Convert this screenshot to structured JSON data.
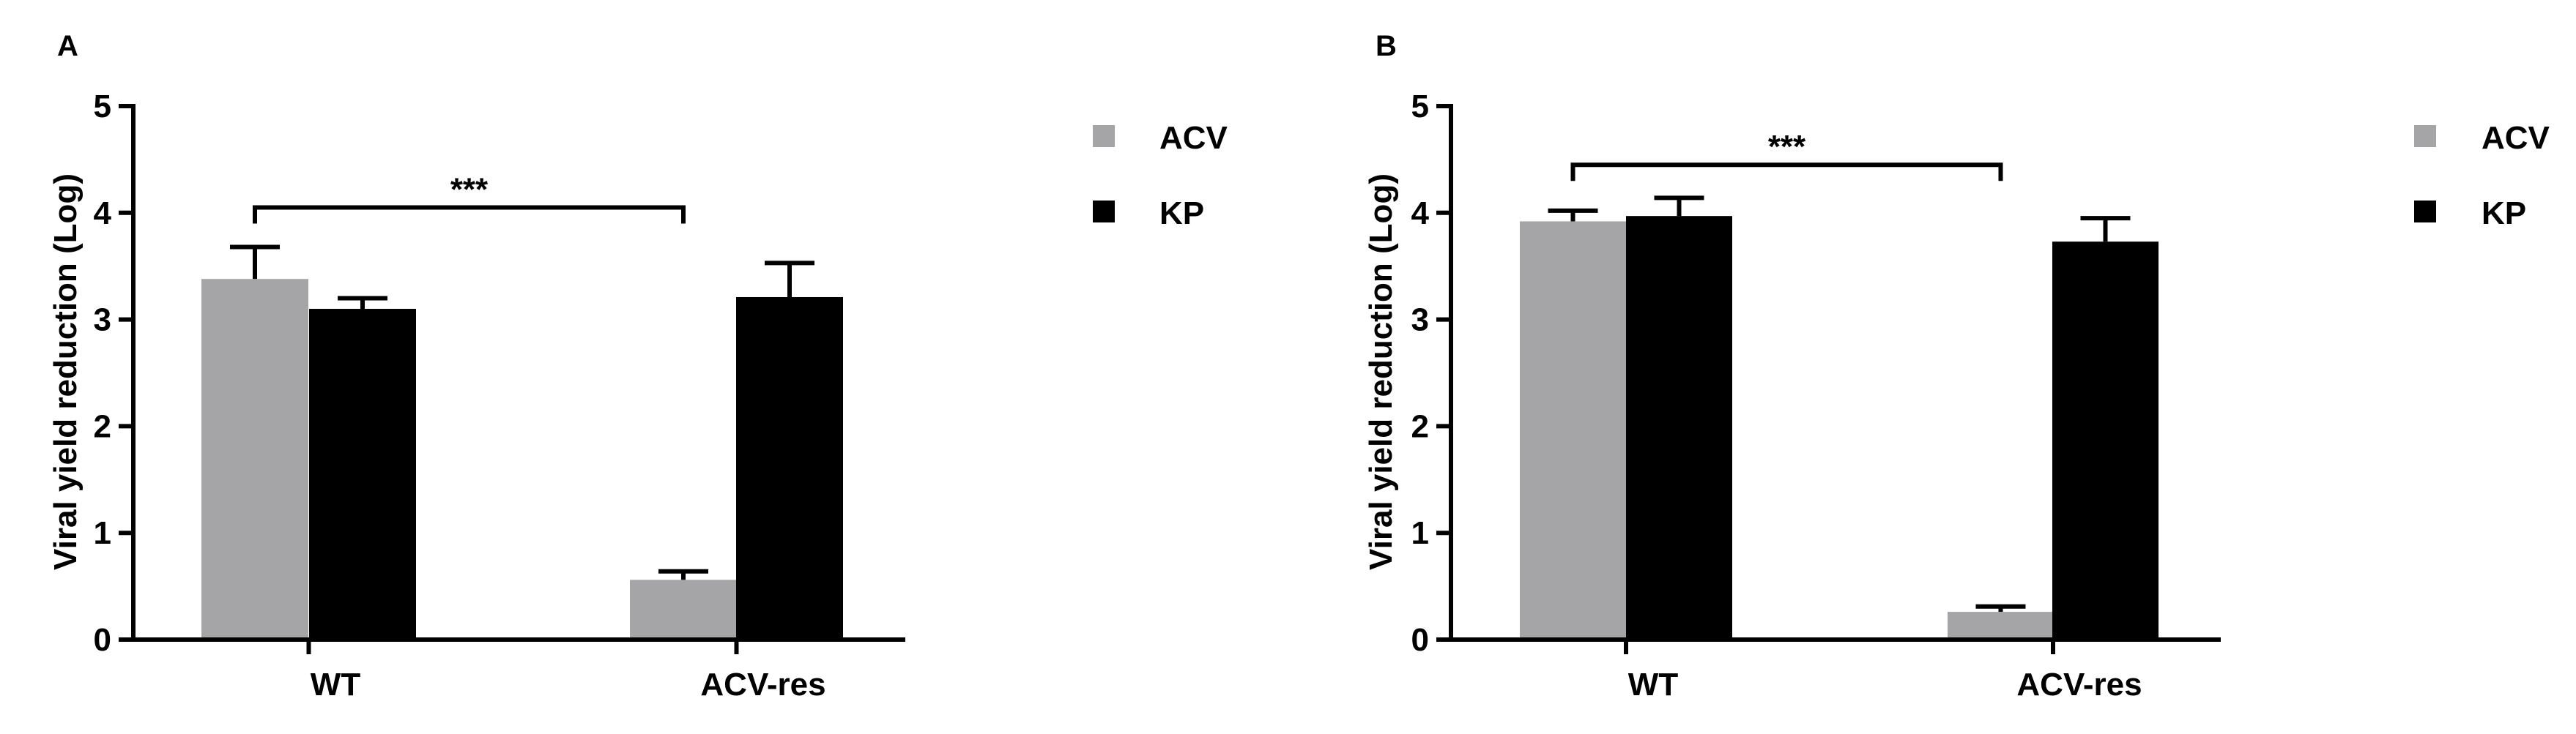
{
  "chart_data": [
    {
      "panel_label": "A",
      "type": "bar",
      "categories": [
        "WT",
        "ACV-res"
      ],
      "series": [
        {
          "name": "ACV",
          "color": "#a5a5a8",
          "values": [
            3.38,
            0.56
          ],
          "errors": [
            0.3,
            0.08
          ]
        },
        {
          "name": "KP",
          "color": "#000000",
          "values": [
            3.1,
            3.21
          ],
          "errors": [
            0.1,
            0.32
          ]
        }
      ],
      "ylabel": "Viral yield reduction (Log)",
      "ylim": [
        0,
        5
      ],
      "yticks": [
        "0",
        "1",
        "2",
        "3",
        "4",
        "5"
      ],
      "significance": {
        "label": "***",
        "from": "WT:ACV",
        "to": "ACV-res:ACV",
        "y": 4.05
      },
      "legend_position": "right"
    },
    {
      "panel_label": "B",
      "type": "bar",
      "categories": [
        "WT",
        "ACV-res"
      ],
      "series": [
        {
          "name": "ACV",
          "color": "#a5a5a8",
          "values": [
            3.92,
            0.26
          ],
          "errors": [
            0.1,
            0.05
          ]
        },
        {
          "name": "KP",
          "color": "#000000",
          "values": [
            3.97,
            3.73
          ],
          "errors": [
            0.17,
            0.22
          ]
        }
      ],
      "ylabel": "Viral yield reduction (Log)",
      "ylim": [
        0,
        5
      ],
      "yticks": [
        "0",
        "1",
        "2",
        "3",
        "4",
        "5"
      ],
      "significance": {
        "label": "***",
        "from": "WT:ACV",
        "to": "ACV-res:ACV",
        "y": 4.45
      },
      "legend_position": "right"
    }
  ]
}
